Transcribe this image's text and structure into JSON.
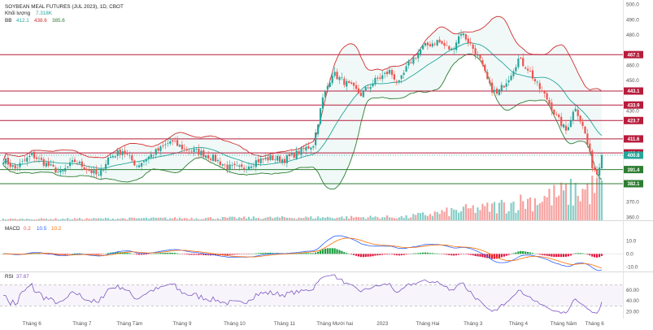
{
  "header": {
    "title": "SOYBEAN MEAL FUTURES (JUL 2023), 1D, CBOT",
    "volume_label": "Khối lượng",
    "volume_value": "7.318K",
    "bb_label": "BB",
    "bb_values": [
      "412.1",
      "438.6",
      "385.6"
    ],
    "macd_label": "MACD",
    "macd_values": [
      "0.2",
      "10.5",
      "10.2"
    ],
    "rsi_label": "RSI",
    "rsi_value": "37.87"
  },
  "colors": {
    "up": "#26a69a",
    "down": "#ef5350",
    "upper_band": "#d32f2f",
    "lower_band": "#2e7d32",
    "basis": "#26a69a",
    "level_red": "#b71c3c",
    "level_green": "#2e7d32",
    "current": "#26a69a",
    "macd_line": "#2962ff",
    "signal_line": "#ff6d00",
    "rsi_line": "#7e57c2"
  },
  "chart_data": [
    {
      "type": "candlestick",
      "title": "SOYBEAN MEAL FUTURES (JUL 2023), 1D, CBOT",
      "x_ticks": [
        "Tháng 6",
        "Tháng 7",
        "Tháng Tám",
        "Tháng 9",
        "Tháng 10",
        "Tháng 11",
        "Tháng Mười hai",
        "2023",
        "Tháng Hai",
        "Tháng 3",
        "Tháng 4",
        "Tháng Năm",
        "Tháng 6"
      ],
      "y_ticks": [
        360.0,
        370.0,
        380.0,
        390.0,
        400.0,
        410.0,
        420.0,
        430.0,
        440.0,
        450.0,
        460.0,
        470.0,
        480.0,
        490.0,
        500.0
      ],
      "ylim": [
        358,
        502
      ],
      "levels": [
        {
          "value": 467.1,
          "color": "red"
        },
        {
          "value": 443.1,
          "color": "red"
        },
        {
          "value": 433.9,
          "color": "red"
        },
        {
          "value": 423.7,
          "color": "red"
        },
        {
          "value": 411.6,
          "color": "red"
        },
        {
          "value": 402.4,
          "color": "red"
        },
        {
          "value": 391.4,
          "color": "green"
        },
        {
          "value": 382.1,
          "color": "green"
        }
      ],
      "current_price": 400.8,
      "close_anchors": [
        [
          0,
          398
        ],
        [
          5,
          392
        ],
        [
          12,
          401
        ],
        [
          18,
          395
        ],
        [
          24,
          389
        ],
        [
          30,
          397
        ],
        [
          35,
          392
        ],
        [
          40,
          387
        ],
        [
          44,
          399
        ],
        [
          50,
          404
        ],
        [
          56,
          394
        ],
        [
          62,
          401
        ],
        [
          66,
          405
        ],
        [
          70,
          410
        ],
        [
          76,
          405
        ],
        [
          82,
          403
        ],
        [
          88,
          399
        ],
        [
          94,
          393
        ],
        [
          100,
          392
        ],
        [
          106,
          397
        ],
        [
          112,
          399
        ],
        [
          118,
          398
        ],
        [
          124,
          403
        ],
        [
          130,
          408
        ],
        [
          134,
          438
        ],
        [
          138,
          455
        ],
        [
          144,
          448
        ],
        [
          150,
          441
        ],
        [
          156,
          450
        ],
        [
          162,
          456
        ],
        [
          166,
          448
        ],
        [
          170,
          461
        ],
        [
          176,
          472
        ],
        [
          182,
          476
        ],
        [
          188,
          470
        ],
        [
          192,
          482
        ],
        [
          196,
          474
        ],
        [
          200,
          463
        ],
        [
          204,
          446
        ],
        [
          207,
          441
        ],
        [
          212,
          452
        ],
        [
          216,
          464
        ],
        [
          220,
          458
        ],
        [
          224,
          447
        ],
        [
          228,
          438
        ],
        [
          232,
          426
        ],
        [
          236,
          417
        ],
        [
          240,
          433
        ],
        [
          244,
          415
        ],
        [
          247,
          394
        ],
        [
          249,
          389
        ],
        [
          251,
          401
        ]
      ],
      "volume_note": "volume bars at bottom of price pane, rising sharply from February to June"
    },
    {
      "type": "line",
      "name": "MACD",
      "y_ticks": [
        10.0,
        0.0,
        -10.0
      ],
      "ylim": [
        -13,
        23
      ],
      "values_label": [
        "0.2",
        "10.5",
        "10.2"
      ]
    },
    {
      "type": "line",
      "name": "RSI",
      "y_ticks": [
        60.0,
        40.0,
        20.0
      ],
      "ylim": [
        10,
        90
      ],
      "band": [
        30,
        70
      ],
      "value": 37.87
    }
  ]
}
